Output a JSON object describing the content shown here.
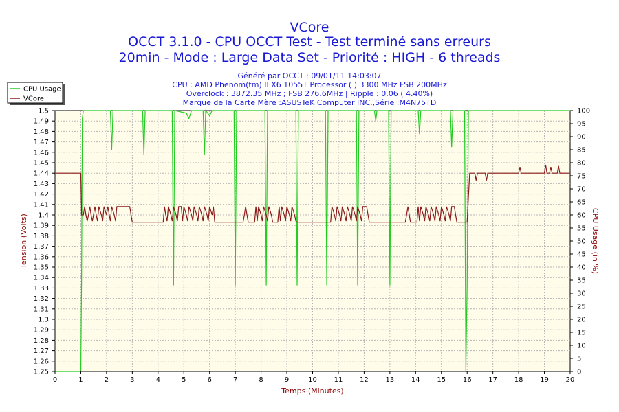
{
  "chart_data": {
    "type": "line",
    "title_lines": [
      "VCore",
      "OCCT 3.1.0 - CPU OCCT Test - Test terminé sans erreurs",
      "20min - Mode : Large Data Set - Priorité : HIGH - 6 threads"
    ],
    "info_lines": [
      "Généré par OCCT : 09/01/11 14:03:07",
      "CPU : AMD Phenom(tm) II X6 1055T Processor (  ) 3300 MHz FSB 200MHz",
      "Overclock : 3872.35 MHz ; FSB 276.6MHz | Ripple : 0.06 ( 4.40%)",
      "Marque de la Carte Mère :ASUSTeK Computer INC.,Série :M4N75TD"
    ],
    "xlabel": "Temps (Minutes)",
    "ylabel_left": "Tension (Volts)",
    "ylabel_right": "CPU Usage (in %)",
    "xlim": [
      0,
      20
    ],
    "ylim_left": [
      1.25,
      1.5
    ],
    "ylim_right": [
      0,
      100
    ],
    "grid": true,
    "legend_position": "top-left",
    "x_ticks": [
      "0",
      "1",
      "2",
      "3",
      "4",
      "5",
      "6",
      "7",
      "8",
      "9",
      "10",
      "11",
      "12",
      "13",
      "14",
      "15",
      "16",
      "17",
      "18",
      "19",
      "20"
    ],
    "y_left_ticks": [
      "1.25",
      "1.26",
      "1.27",
      "1.28",
      "1.29",
      "1.3",
      "1.31",
      "1.32",
      "1.33",
      "1.34",
      "1.35",
      "1.36",
      "1.37",
      "1.38",
      "1.39",
      "1.4",
      "1.41",
      "1.42",
      "1.43",
      "1.44",
      "1.45",
      "1.46",
      "1.47",
      "1.48",
      "1.49",
      "1.5"
    ],
    "y_right_ticks": [
      "0",
      "5",
      "10",
      "15",
      "20",
      "25",
      "30",
      "35",
      "40",
      "45",
      "50",
      "55",
      "60",
      "65",
      "70",
      "75",
      "80",
      "85",
      "90",
      "95",
      "100"
    ],
    "series": [
      {
        "name": "CPU Usage",
        "color": "#22cc22",
        "axis": "right",
        "points": [
          [
            0,
            0
          ],
          [
            0.95,
            0
          ],
          [
            1.0,
            0
          ],
          [
            1.03,
            35
          ],
          [
            1.06,
            97
          ],
          [
            1.1,
            100
          ],
          [
            2.15,
            100
          ],
          [
            2.2,
            85
          ],
          [
            2.25,
            100
          ],
          [
            3.4,
            100
          ],
          [
            3.45,
            83
          ],
          [
            3.5,
            100
          ],
          [
            4.55,
            100
          ],
          [
            4.6,
            33
          ],
          [
            4.65,
            100
          ],
          [
            5.1,
            99
          ],
          [
            5.2,
            97
          ],
          [
            5.3,
            100
          ],
          [
            5.75,
            100
          ],
          [
            5.8,
            83
          ],
          [
            5.85,
            100
          ],
          [
            6.0,
            98
          ],
          [
            6.1,
            100
          ],
          [
            6.95,
            100
          ],
          [
            7.0,
            33
          ],
          [
            7.05,
            100
          ],
          [
            8.15,
            100
          ],
          [
            8.2,
            33
          ],
          [
            8.25,
            100
          ],
          [
            9.35,
            100
          ],
          [
            9.4,
            33
          ],
          [
            9.45,
            100
          ],
          [
            10.5,
            100
          ],
          [
            10.55,
            33
          ],
          [
            10.6,
            100
          ],
          [
            11.7,
            100
          ],
          [
            11.75,
            33
          ],
          [
            11.8,
            100
          ],
          [
            12.4,
            100
          ],
          [
            12.45,
            96
          ],
          [
            12.5,
            100
          ],
          [
            12.95,
            100
          ],
          [
            13.0,
            33
          ],
          [
            13.05,
            100
          ],
          [
            14.1,
            100
          ],
          [
            14.15,
            91
          ],
          [
            14.2,
            100
          ],
          [
            15.35,
            100
          ],
          [
            15.4,
            86
          ],
          [
            15.45,
            100
          ],
          [
            15.9,
            100
          ],
          [
            15.95,
            0
          ],
          [
            16.0,
            33
          ],
          [
            16.05,
            100
          ],
          [
            20,
            100
          ]
        ]
      },
      {
        "name": "VCore",
        "color": "#8b1a1a",
        "axis": "left",
        "points": [
          [
            0,
            1.44
          ],
          [
            1.0,
            1.44
          ],
          [
            1.03,
            1.4
          ],
          [
            1.1,
            1.4
          ],
          [
            1.15,
            1.408
          ],
          [
            1.2,
            1.4
          ],
          [
            1.25,
            1.394
          ],
          [
            1.3,
            1.4
          ],
          [
            1.35,
            1.408
          ],
          [
            1.4,
            1.4
          ],
          [
            1.45,
            1.394
          ],
          [
            1.55,
            1.408
          ],
          [
            1.6,
            1.4
          ],
          [
            1.65,
            1.394
          ],
          [
            1.7,
            1.408
          ],
          [
            1.8,
            1.4
          ],
          [
            1.85,
            1.394
          ],
          [
            1.9,
            1.408
          ],
          [
            2.0,
            1.4
          ],
          [
            2.05,
            1.408
          ],
          [
            2.15,
            1.394
          ],
          [
            2.2,
            1.408
          ],
          [
            2.3,
            1.4
          ],
          [
            2.35,
            1.394
          ],
          [
            2.4,
            1.408
          ],
          [
            2.9,
            1.408
          ],
          [
            3.0,
            1.393
          ],
          [
            4.2,
            1.393
          ],
          [
            4.25,
            1.408
          ],
          [
            4.3,
            1.4
          ],
          [
            4.35,
            1.394
          ],
          [
            4.4,
            1.408
          ],
          [
            4.5,
            1.4
          ],
          [
            4.55,
            1.394
          ],
          [
            4.6,
            1.408
          ],
          [
            4.7,
            1.4
          ],
          [
            4.75,
            1.394
          ],
          [
            4.8,
            1.408
          ],
          [
            4.9,
            1.408
          ],
          [
            4.95,
            1.394
          ],
          [
            5.0,
            1.408
          ],
          [
            5.1,
            1.4
          ],
          [
            5.15,
            1.394
          ],
          [
            5.2,
            1.408
          ],
          [
            5.3,
            1.4
          ],
          [
            5.35,
            1.394
          ],
          [
            5.4,
            1.408
          ],
          [
            5.5,
            1.4
          ],
          [
            5.55,
            1.394
          ],
          [
            5.6,
            1.408
          ],
          [
            5.7,
            1.4
          ],
          [
            5.75,
            1.394
          ],
          [
            5.8,
            1.408
          ],
          [
            5.9,
            1.4
          ],
          [
            5.95,
            1.394
          ],
          [
            6.0,
            1.408
          ],
          [
            6.1,
            1.4
          ],
          [
            6.15,
            1.408
          ],
          [
            6.2,
            1.393
          ],
          [
            7.3,
            1.393
          ],
          [
            7.35,
            1.4
          ],
          [
            7.4,
            1.408
          ],
          [
            7.5,
            1.393
          ],
          [
            7.75,
            1.393
          ],
          [
            7.8,
            1.408
          ],
          [
            7.85,
            1.394
          ],
          [
            7.9,
            1.408
          ],
          [
            8.0,
            1.4
          ],
          [
            8.05,
            1.394
          ],
          [
            8.1,
            1.408
          ],
          [
            8.2,
            1.4
          ],
          [
            8.25,
            1.394
          ],
          [
            8.3,
            1.408
          ],
          [
            8.4,
            1.4
          ],
          [
            8.45,
            1.393
          ],
          [
            8.65,
            1.393
          ],
          [
            8.7,
            1.408
          ],
          [
            8.75,
            1.394
          ],
          [
            8.8,
            1.408
          ],
          [
            8.9,
            1.4
          ],
          [
            8.95,
            1.394
          ],
          [
            9.0,
            1.408
          ],
          [
            9.1,
            1.4
          ],
          [
            9.15,
            1.394
          ],
          [
            9.2,
            1.408
          ],
          [
            9.3,
            1.4
          ],
          [
            9.35,
            1.394
          ],
          [
            9.4,
            1.393
          ],
          [
            10.7,
            1.393
          ],
          [
            10.75,
            1.408
          ],
          [
            10.85,
            1.4
          ],
          [
            10.9,
            1.394
          ],
          [
            10.95,
            1.408
          ],
          [
            11.05,
            1.4
          ],
          [
            11.1,
            1.394
          ],
          [
            11.15,
            1.408
          ],
          [
            11.25,
            1.4
          ],
          [
            11.3,
            1.394
          ],
          [
            11.35,
            1.408
          ],
          [
            11.45,
            1.4
          ],
          [
            11.5,
            1.394
          ],
          [
            11.55,
            1.408
          ],
          [
            11.65,
            1.4
          ],
          [
            11.7,
            1.394
          ],
          [
            11.75,
            1.408
          ],
          [
            11.85,
            1.4
          ],
          [
            11.9,
            1.394
          ],
          [
            11.95,
            1.408
          ],
          [
            12.1,
            1.408
          ],
          [
            12.2,
            1.393
          ],
          [
            13.6,
            1.393
          ],
          [
            13.65,
            1.4
          ],
          [
            13.7,
            1.408
          ],
          [
            13.8,
            1.393
          ],
          [
            14.05,
            1.393
          ],
          [
            14.1,
            1.408
          ],
          [
            14.15,
            1.394
          ],
          [
            14.2,
            1.408
          ],
          [
            14.3,
            1.4
          ],
          [
            14.35,
            1.394
          ],
          [
            14.4,
            1.408
          ],
          [
            14.5,
            1.4
          ],
          [
            14.55,
            1.394
          ],
          [
            14.6,
            1.408
          ],
          [
            14.7,
            1.4
          ],
          [
            14.75,
            1.394
          ],
          [
            14.8,
            1.408
          ],
          [
            14.9,
            1.4
          ],
          [
            14.95,
            1.394
          ],
          [
            15.0,
            1.408
          ],
          [
            15.1,
            1.4
          ],
          [
            15.15,
            1.394
          ],
          [
            15.2,
            1.408
          ],
          [
            15.3,
            1.4
          ],
          [
            15.35,
            1.394
          ],
          [
            15.4,
            1.408
          ],
          [
            15.5,
            1.408
          ],
          [
            15.6,
            1.393
          ],
          [
            16.0,
            1.393
          ],
          [
            16.1,
            1.44
          ],
          [
            16.3,
            1.44
          ],
          [
            16.35,
            1.433
          ],
          [
            16.4,
            1.44
          ],
          [
            16.7,
            1.44
          ],
          [
            16.75,
            1.433
          ],
          [
            16.8,
            1.44
          ],
          [
            18.0,
            1.44
          ],
          [
            18.05,
            1.446
          ],
          [
            18.1,
            1.44
          ],
          [
            19.0,
            1.44
          ],
          [
            19.05,
            1.448
          ],
          [
            19.1,
            1.44
          ],
          [
            19.2,
            1.44
          ],
          [
            19.25,
            1.446
          ],
          [
            19.3,
            1.44
          ],
          [
            19.5,
            1.44
          ],
          [
            19.55,
            1.447
          ],
          [
            19.6,
            1.44
          ],
          [
            20,
            1.44
          ]
        ]
      }
    ]
  }
}
